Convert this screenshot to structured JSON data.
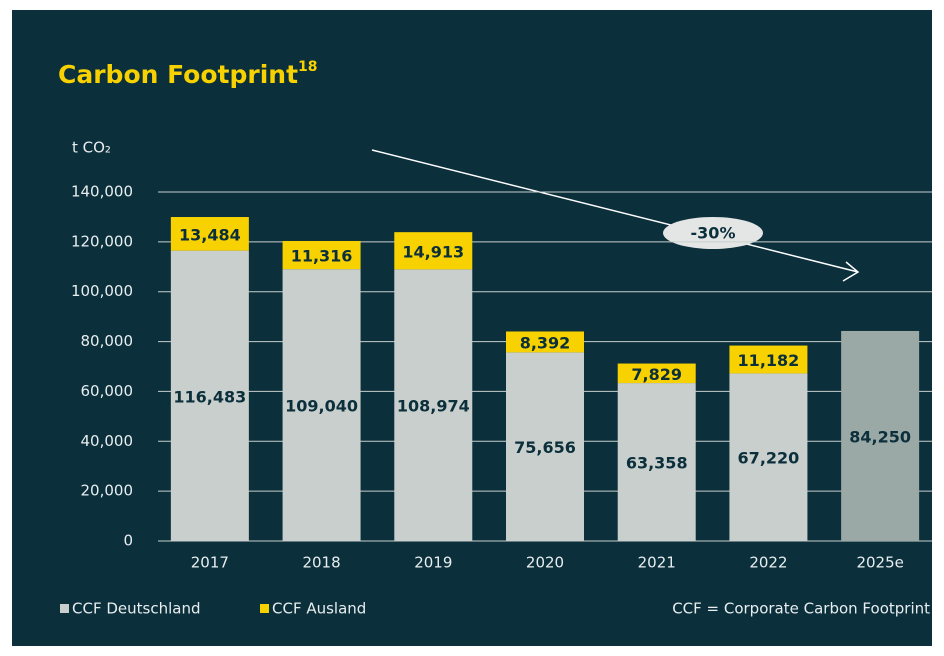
{
  "chart_data": {
    "type": "stacked_bar",
    "title": "Carbon Footprint",
    "title_footnote": "18",
    "y_label": "t CO₂",
    "categories": [
      "2017",
      "2018",
      "2019",
      "2020",
      "2021",
      "2022",
      "2025e"
    ],
    "series": [
      {
        "name": "CCF Deutschland",
        "color": "#c8cfcc",
        "bar_colors": [
          "#c8cfcc",
          "#c8cfcc",
          "#c8cfcc",
          "#c8cfcc",
          "#c8cfcc",
          "#c8cfcc",
          "#9aa9a6"
        ],
        "values": [
          116483,
          109040,
          108974,
          75656,
          63358,
          67220,
          84250
        ],
        "value_labels": [
          "116,483",
          "109,040",
          "108,974",
          "75,656",
          "63,358",
          "67,220",
          "84,250"
        ]
      },
      {
        "name": "CCF Ausland",
        "color": "#f7d200",
        "values": [
          13484,
          11316,
          14913,
          8392,
          7829,
          11182,
          null
        ],
        "value_labels": [
          "13,484",
          "11,316",
          "14,913",
          "8,392",
          "7,829",
          "11,182",
          null
        ]
      }
    ],
    "ylim": [
      0,
      140000
    ],
    "yticks": [
      0,
      {
        "value": 20000,
        "label": "20,000"
      },
      {
        "value": 40000,
        "label": "40,000"
      },
      {
        "value": 60000,
        "label": "60,000"
      },
      {
        "value": 80000,
        "label": "80,000"
      },
      {
        "value": 100000,
        "label": "100,000"
      },
      {
        "value": 120000,
        "label": "120,000"
      },
      {
        "value": 140000,
        "label": "140,000"
      }
    ],
    "grid": true,
    "annotation": "-30%",
    "footnote": "CCF = Corporate Carbon Footprint"
  }
}
